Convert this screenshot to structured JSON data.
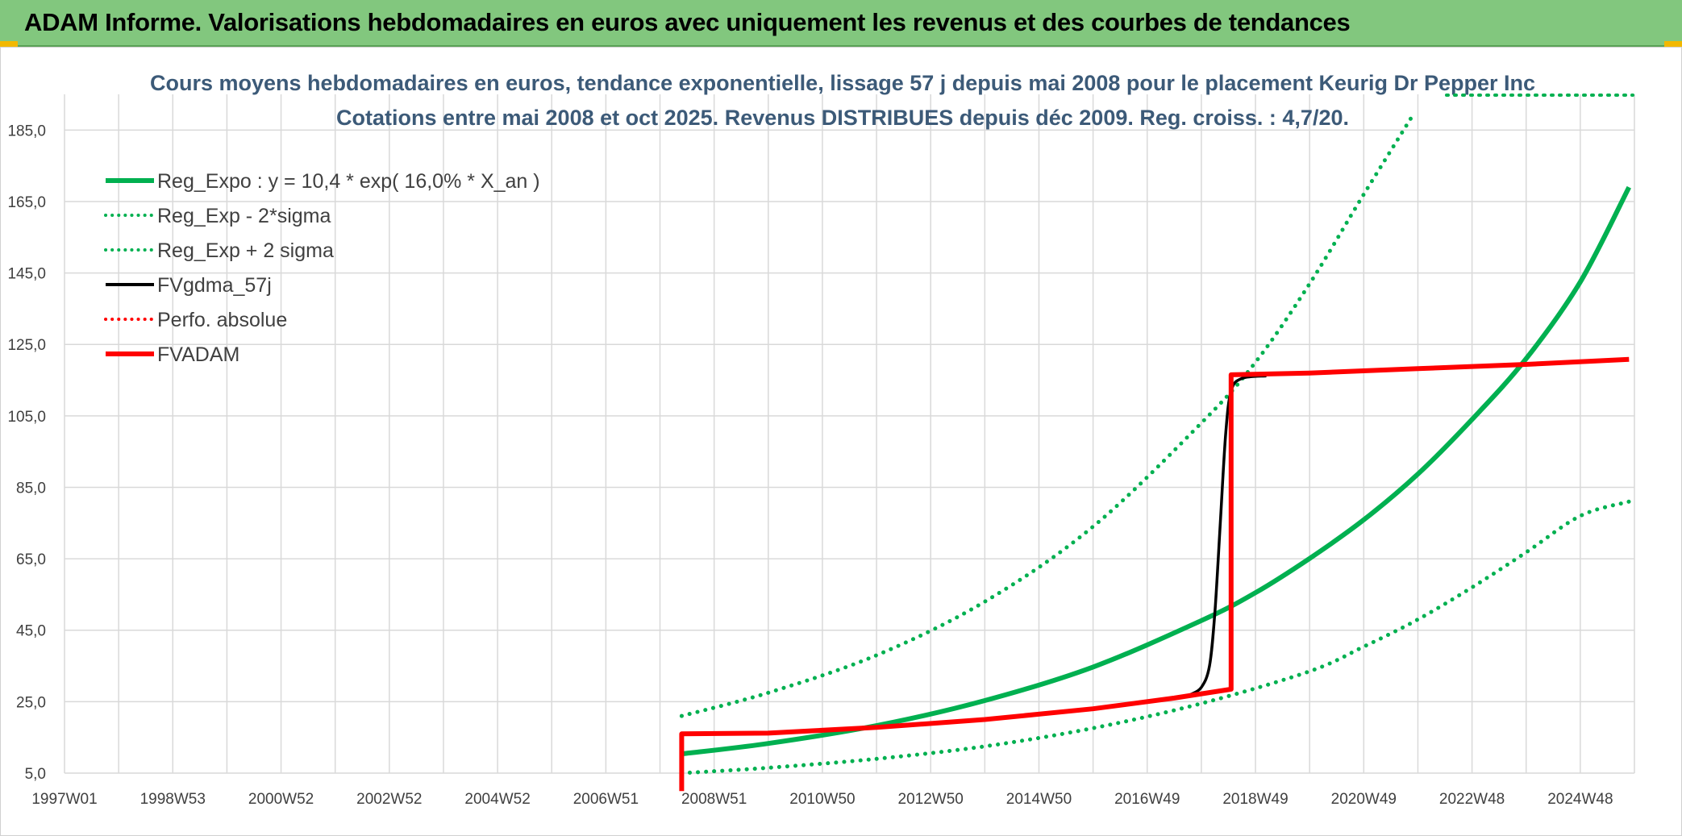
{
  "header": {
    "title": "ADAM Informe. Valorisations hebdomadaires en euros avec uniquement les revenus et des courbes de tendances"
  },
  "colors": {
    "green": "#00b050",
    "red": "#ff0000",
    "black": "#000000",
    "grid": "#d9d9d9",
    "header_bg": "#82c77e"
  },
  "chart_data": {
    "type": "line",
    "title": "Cours moyens hebdomadaires en euros, tendance exponentielle, lissage 57 j depuis mai 2008 pour le placement Keurig Dr Pepper Inc",
    "subtitle": "Cotations entre mai 2008 et oct 2025. Revenus DISTRIBUES depuis déc 2009. Reg. croiss. : 4,7/20.",
    "xlabel": "",
    "ylabel": "",
    "x_range": [
      1997.0,
      2026.0
    ],
    "ylim": [
      5,
      195
    ],
    "grid": true,
    "legend_position": "top-left",
    "y_ticks": [
      "5,0",
      "25,0",
      "45,0",
      "65,0",
      "85,0",
      "105,0",
      "125,0",
      "145,0",
      "165,0",
      "185,0"
    ],
    "x_ticks": [
      {
        "label": "1997W01",
        "x": 1997.0
      },
      {
        "label": "1998W53",
        "x": 1999.0
      },
      {
        "label": "2000W52",
        "x": 2001.0
      },
      {
        "label": "2002W52",
        "x": 2003.0
      },
      {
        "label": "2004W52",
        "x": 2005.0
      },
      {
        "label": "2006W51",
        "x": 2007.0
      },
      {
        "label": "2008W51",
        "x": 2009.0
      },
      {
        "label": "2010W50",
        "x": 2011.0
      },
      {
        "label": "2012W50",
        "x": 2013.0
      },
      {
        "label": "2014W50",
        "x": 2015.0
      },
      {
        "label": "2016W49",
        "x": 2017.0
      },
      {
        "label": "2018W49",
        "x": 2019.0
      },
      {
        "label": "2020W49",
        "x": 2021.0
      },
      {
        "label": "2022W48",
        "x": 2023.0
      },
      {
        "label": "2024W48",
        "x": 2025.0
      }
    ],
    "series": [
      {
        "name": "Reg_Expo : y = 10,4 * exp( 16,0% *  X_an )",
        "style": "solid",
        "color": "#00b050",
        "points": [
          [
            2008.4,
            10.4
          ],
          [
            2010.0,
            13.3
          ],
          [
            2012.0,
            18.3
          ],
          [
            2014.0,
            25.3
          ],
          [
            2016.0,
            34.7
          ],
          [
            2018.0,
            47.7
          ],
          [
            2019.0,
            55.5
          ],
          [
            2020.0,
            65.1
          ],
          [
            2021.0,
            75.9
          ],
          [
            2022.0,
            88.7
          ],
          [
            2023.0,
            104.0
          ],
          [
            2024.0,
            121.0
          ],
          [
            2025.0,
            142.5
          ],
          [
            2025.9,
            169.0
          ]
        ]
      },
      {
        "name": "Reg_Exp - 2*sigma",
        "style": "dotted",
        "color": "#00b050",
        "points": [
          [
            2008.4,
            5.0
          ],
          [
            2010.0,
            6.5
          ],
          [
            2012.0,
            9.0
          ],
          [
            2014.0,
            12.5
          ],
          [
            2016.0,
            17.6
          ],
          [
            2018.0,
            24.5
          ],
          [
            2020.0,
            33.5
          ],
          [
            2021.0,
            40.4
          ],
          [
            2022.0,
            48.0
          ],
          [
            2023.0,
            57.0
          ],
          [
            2024.0,
            66.8
          ],
          [
            2025.0,
            77.0
          ],
          [
            2025.9,
            81.0
          ]
        ]
      },
      {
        "name": "Reg_Exp + 2 sigma",
        "style": "dotted",
        "color": "#00b050",
        "points": [
          [
            2008.4,
            21.0
          ],
          [
            2010.0,
            27.5
          ],
          [
            2012.0,
            38.0
          ],
          [
            2014.0,
            53.0
          ],
          [
            2016.0,
            74.0
          ],
          [
            2018.0,
            103.0
          ],
          [
            2019.0,
            120.0
          ],
          [
            2020.0,
            142.0
          ],
          [
            2021.0,
            167.0
          ],
          [
            2021.9,
            189.0
          ]
        ]
      },
      {
        "name": "FVgdma_57j",
        "style": "solid",
        "color": "#000000",
        "points": [
          [
            2017.8,
            27.0
          ],
          [
            2018.0,
            29.0
          ],
          [
            2018.15,
            35.0
          ],
          [
            2018.25,
            50.0
          ],
          [
            2018.35,
            75.0
          ],
          [
            2018.45,
            100.0
          ],
          [
            2018.55,
            112.0
          ],
          [
            2018.75,
            115.5
          ],
          [
            2019.2,
            116.2
          ]
        ]
      },
      {
        "name": "Perfo. absolue",
        "style": "dotted",
        "color": "#ff0000",
        "points": []
      },
      {
        "name": "FVADAM",
        "style": "solid",
        "color": "#ff0000",
        "points": [
          [
            2008.4,
            0.0
          ],
          [
            2008.4,
            16.0
          ],
          [
            2010.0,
            16.2
          ],
          [
            2012.0,
            17.8
          ],
          [
            2014.0,
            20.0
          ],
          [
            2016.0,
            23.0
          ],
          [
            2017.5,
            26.0
          ],
          [
            2018.55,
            28.5
          ],
          [
            2018.55,
            116.5
          ],
          [
            2020.0,
            117.0
          ],
          [
            2022.0,
            118.2
          ],
          [
            2024.0,
            119.4
          ],
          [
            2025.9,
            120.8
          ]
        ]
      }
    ]
  }
}
